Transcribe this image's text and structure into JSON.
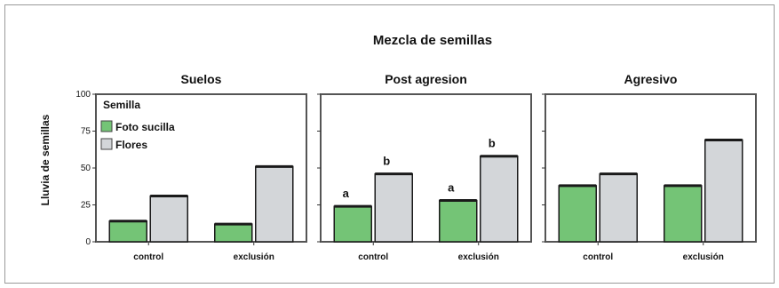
{
  "chart_data": {
    "type": "bar",
    "title": "Mezcla de semillas",
    "ylabel": "Lluvia de semillas",
    "ylim": [
      0,
      100
    ],
    "yticks": [
      0,
      25,
      50,
      75,
      100
    ],
    "legend": {
      "title": "Semilla",
      "placement": "top-left",
      "entries": [
        {
          "name": "Foto sucilla",
          "color": "#74c476"
        },
        {
          "name": "Flores",
          "color": "#d3d6d9"
        }
      ]
    },
    "colors": {
      "green": "#74c476",
      "grey": "#d3d6d9",
      "outline": "#1a1a1a",
      "frame": "#555555"
    },
    "panels": [
      {
        "title": "Suelos",
        "categories": [
          "control",
          "exclusión"
        ],
        "series": [
          {
            "name": "Foto sucilla",
            "values": [
              14,
              12
            ]
          },
          {
            "name": "Flores",
            "values": [
              31,
              51
            ]
          }
        ],
        "annotations": [
          [
            "",
            ""
          ],
          [
            "",
            ""
          ]
        ]
      },
      {
        "title": "Post agresion",
        "categories": [
          "control",
          "exclusión"
        ],
        "series": [
          {
            "name": "Foto sucilla",
            "values": [
              24,
              28
            ]
          },
          {
            "name": "Flores",
            "values": [
              46,
              58
            ]
          }
        ],
        "annotations": [
          [
            "a",
            "b"
          ],
          [
            "a",
            "b"
          ]
        ]
      },
      {
        "title": "Agresivo",
        "categories": [
          "control",
          "exclusión"
        ],
        "series": [
          {
            "name": "Foto sucilla",
            "values": [
              38,
              38
            ]
          },
          {
            "name": "Flores",
            "values": [
              46,
              69
            ]
          }
        ],
        "annotations": [
          [
            "",
            ""
          ],
          [
            "",
            ""
          ]
        ]
      }
    ]
  }
}
